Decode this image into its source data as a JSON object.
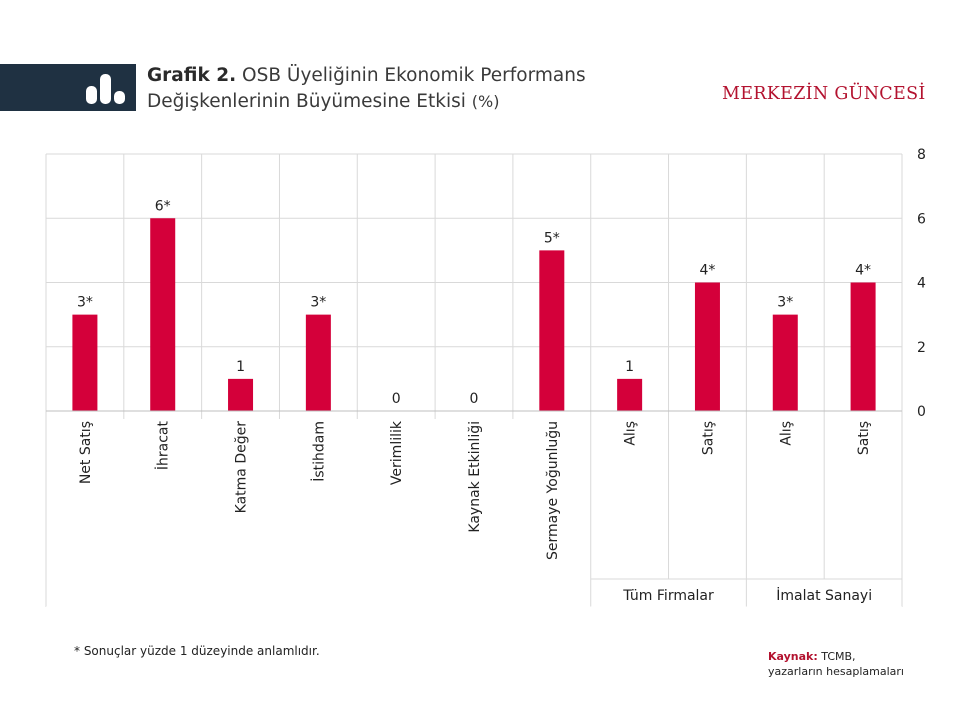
{
  "header": {
    "title_bold": "Grafik 2.",
    "title_rest": " OSB Üyeliğinin Ekonomik Performans",
    "title_line2": "Değişkenlerinin Büyümesine Etkisi",
    "title_unit": "(%)",
    "brand": "MERKEZİN GÜNCESİ"
  },
  "chart_data": {
    "type": "bar",
    "categories": [
      "Net Satış",
      "İhracat",
      "Katma Değer",
      "İstihdam",
      "Verimlilik",
      "Kaynak Etkinliği",
      "Sermaye Yoğunluğu",
      "Alış",
      "Satış",
      "Alış",
      "Satış"
    ],
    "values": [
      3,
      6,
      1,
      3,
      0,
      0,
      5,
      1,
      4,
      3,
      4
    ],
    "data_labels": [
      "3*",
      "6*",
      "1",
      "3*",
      "0",
      "0",
      "5*",
      "1",
      "4*",
      "3*",
      "4*"
    ],
    "groups": [
      {
        "label": "Tüm Firmalar",
        "start": 7,
        "end": 8
      },
      {
        "label": "İmalat Sanayi",
        "start": 9,
        "end": 10
      }
    ],
    "ylim": [
      0,
      8
    ],
    "yticks": [
      0,
      2,
      4,
      6,
      8
    ],
    "y_axis_side": "right",
    "grid": true,
    "bar_color": "#d4003a"
  },
  "footer": {
    "footnote": "* Sonuçlar yüzde 1 düzeyinde anlamlıdır.",
    "source_label": "Kaynak:",
    "source_line1": " TCMB,",
    "source_line2": "yazarların hesaplamaları"
  }
}
